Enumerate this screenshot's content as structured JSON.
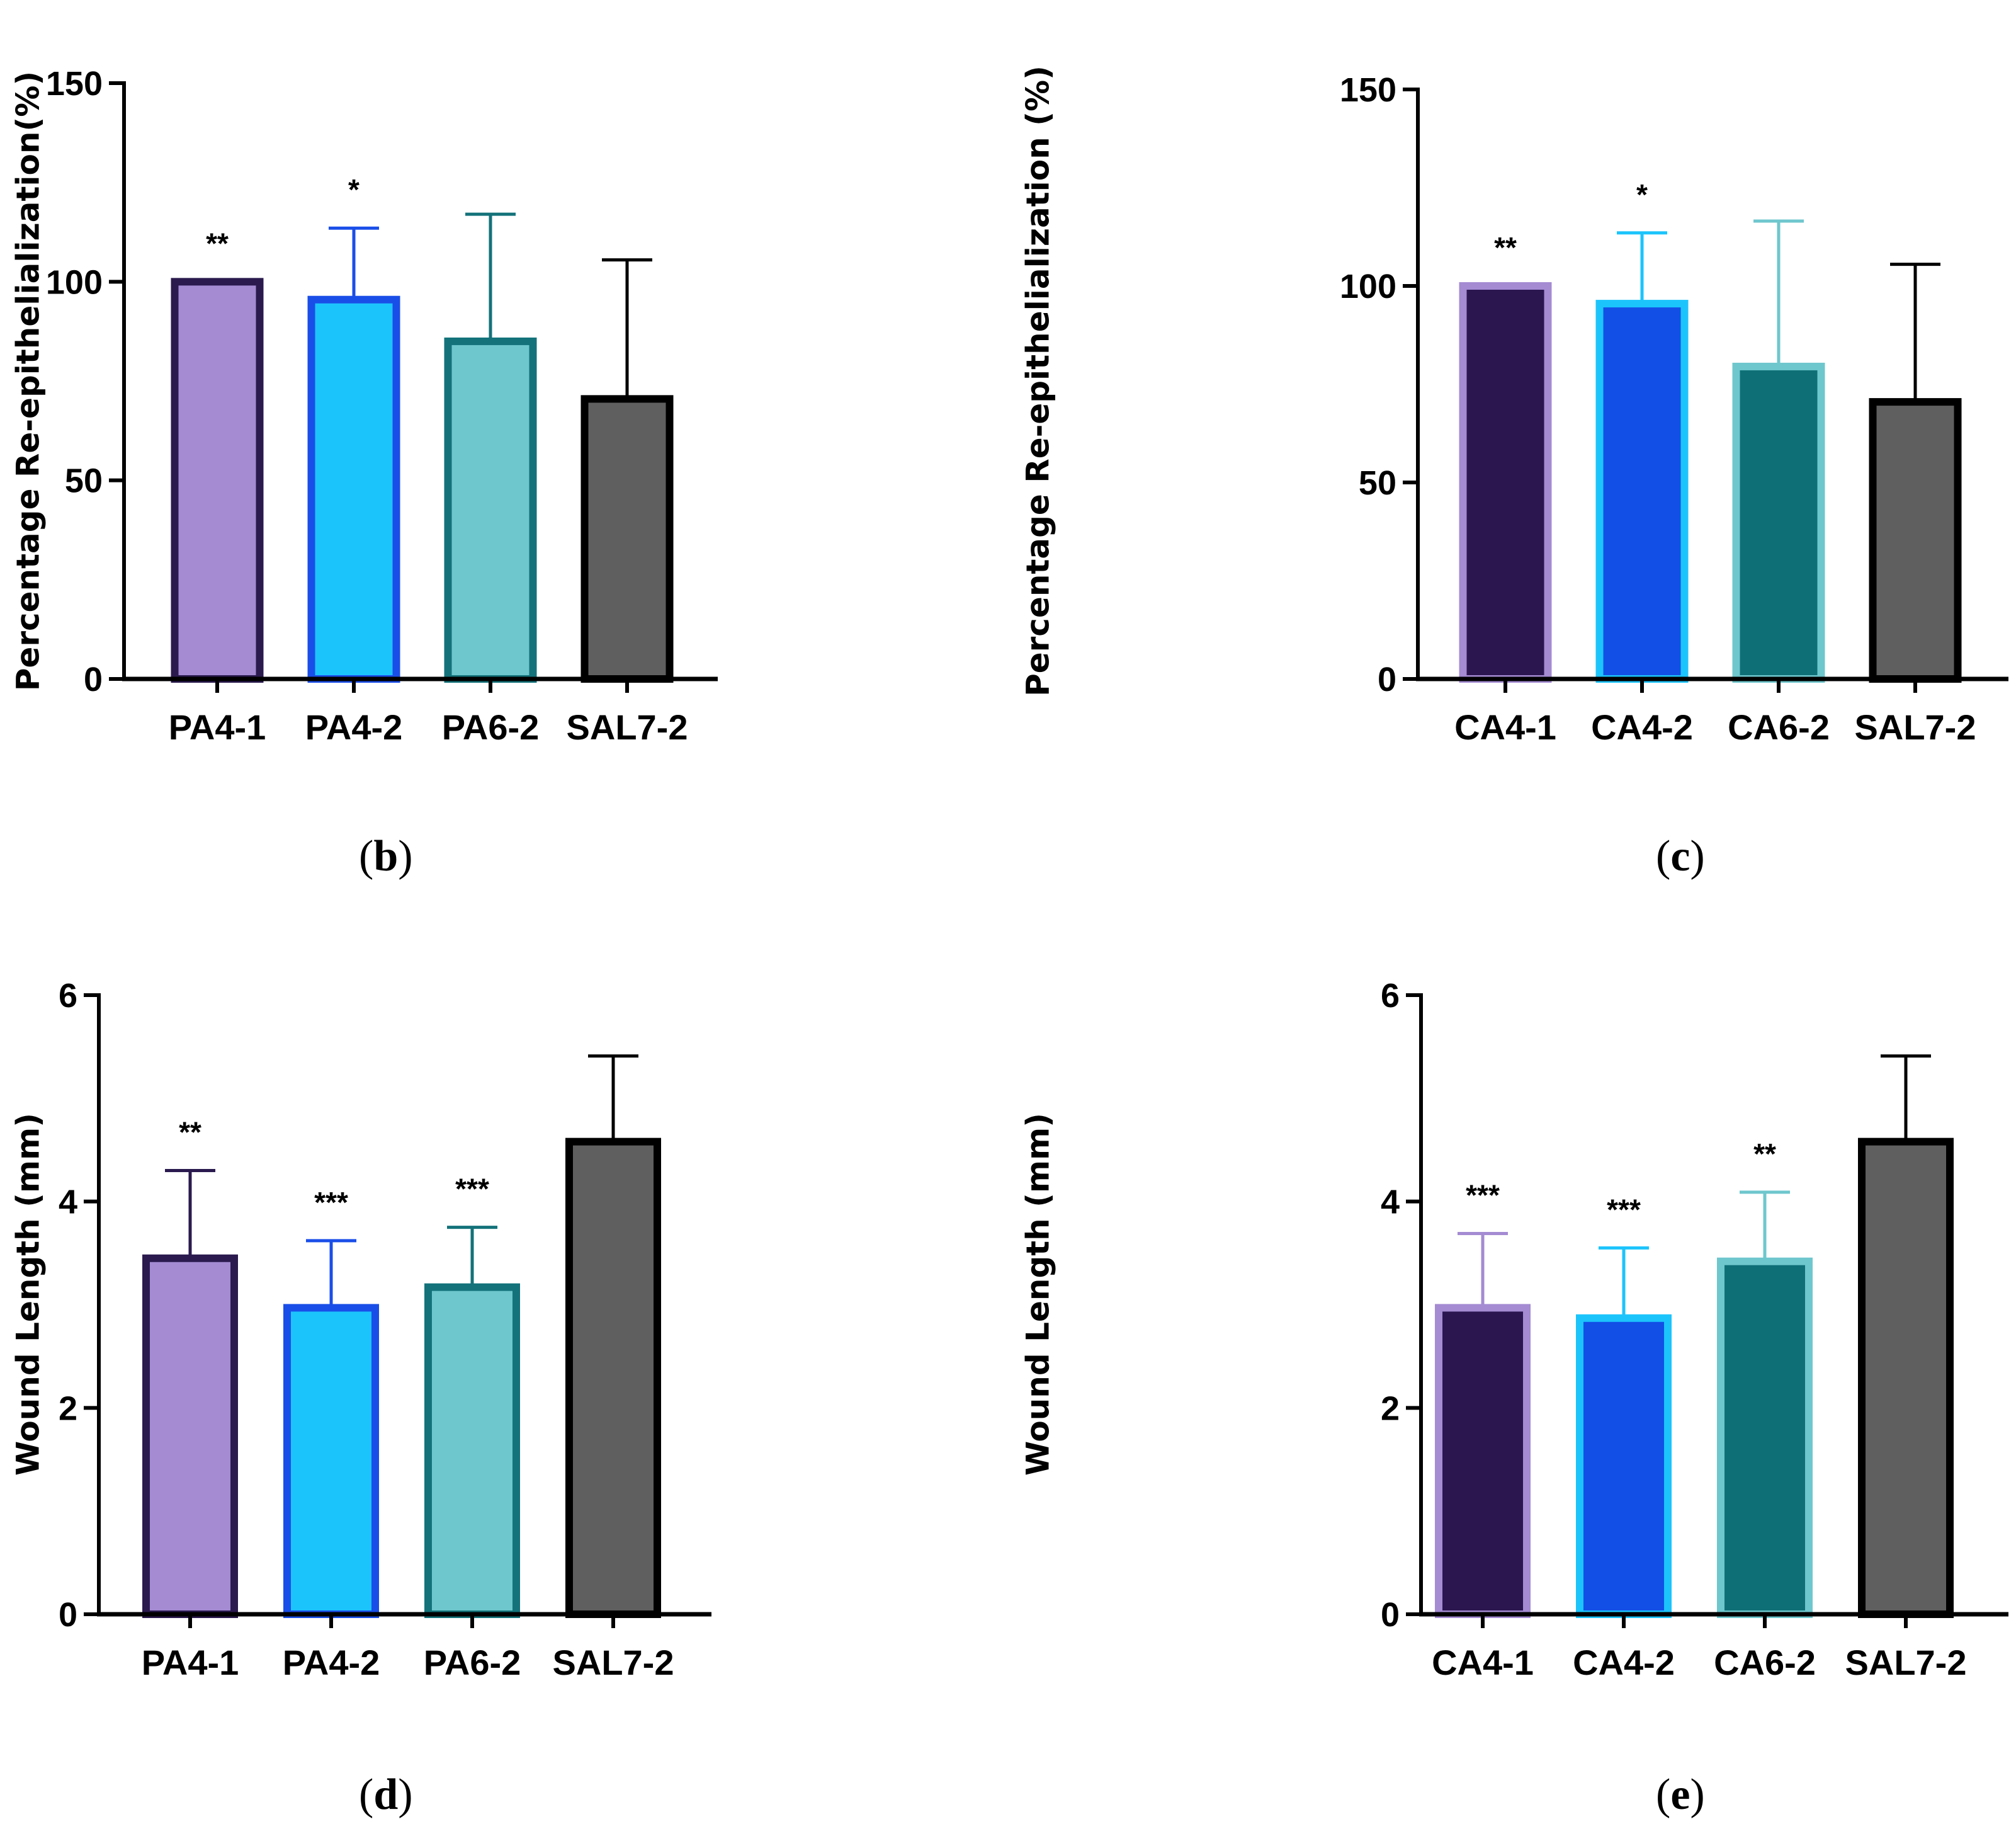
{
  "chart_data": [
    {
      "id": "b",
      "type": "bar",
      "caption_letter": "b",
      "ylabel": "Percentage Re-epithelialization(%)",
      "ylim": [
        0,
        150
      ],
      "yticks": [
        0,
        50,
        100,
        150
      ],
      "categories": [
        "PA4-1",
        "PA4-2",
        "PA6-2",
        "SAL7-2"
      ],
      "values": [
        100,
        95.5,
        85,
        70.5
      ],
      "errors": [
        0,
        18,
        32,
        35
      ],
      "significance": [
        "**",
        "*",
        "",
        ""
      ],
      "fill_colors": [
        "#a48bd2",
        "#1cc4fc",
        "#6ec7cd",
        "#5f5f5f"
      ],
      "edge_colors": [
        "#2a1a4e",
        "#1a4ee8",
        "#13727a",
        "#000000"
      ]
    },
    {
      "id": "c",
      "type": "bar",
      "caption_letter": "c",
      "ylabel": "Percentage Re-epithelialization (%)",
      "ylim": [
        0,
        150
      ],
      "yticks": [
        0,
        50,
        100,
        150
      ],
      "categories": [
        "CA4-1",
        "CA4-2",
        "CA6-2",
        "SAL7-2"
      ],
      "values": [
        100,
        95.5,
        79.5,
        70.5
      ],
      "errors": [
        0,
        18,
        37,
        35
      ],
      "significance": [
        "**",
        "*",
        "",
        ""
      ],
      "fill_colors": [
        "#2b1650",
        "#124fe6",
        "#0f6f77",
        "#5f5f5f"
      ],
      "edge_colors": [
        "#a48bd2",
        "#1cc4fc",
        "#6ec7cd",
        "#000000"
      ]
    },
    {
      "id": "d",
      "type": "bar",
      "caption_letter": "d",
      "ylabel": "Wound Length (mm)",
      "ylim": [
        0,
        6
      ],
      "yticks": [
        0,
        2,
        4,
        6
      ],
      "categories": [
        "PA4-1",
        "PA4-2",
        "PA6-2",
        "SAL7-2"
      ],
      "values": [
        3.45,
        2.97,
        3.17,
        4.58
      ],
      "errors": [
        0.85,
        0.65,
        0.58,
        0.83
      ],
      "significance": [
        "**",
        "***",
        "***",
        ""
      ],
      "fill_colors": [
        "#a48bd2",
        "#1cc4fc",
        "#6ec7cd",
        "#5f5f5f"
      ],
      "edge_colors": [
        "#2a1a4e",
        "#1a4ee8",
        "#13727a",
        "#000000"
      ]
    },
    {
      "id": "e",
      "type": "bar",
      "caption_letter": "e",
      "ylabel": "Wound Length (mm)",
      "ylim": [
        0,
        6
      ],
      "yticks": [
        0,
        2,
        4,
        6
      ],
      "categories": [
        "CA4-1",
        "CA4-2",
        "CA6-2",
        "SAL7-2"
      ],
      "values": [
        2.97,
        2.87,
        3.42,
        4.58
      ],
      "errors": [
        0.72,
        0.68,
        0.67,
        0.83
      ],
      "significance": [
        "***",
        "***",
        "**",
        ""
      ],
      "fill_colors": [
        "#2b1650",
        "#124fe6",
        "#0f6f77",
        "#5f5f5f"
      ],
      "edge_colors": [
        "#a48bd2",
        "#1cc4fc",
        "#6ec7cd",
        "#000000"
      ]
    }
  ]
}
